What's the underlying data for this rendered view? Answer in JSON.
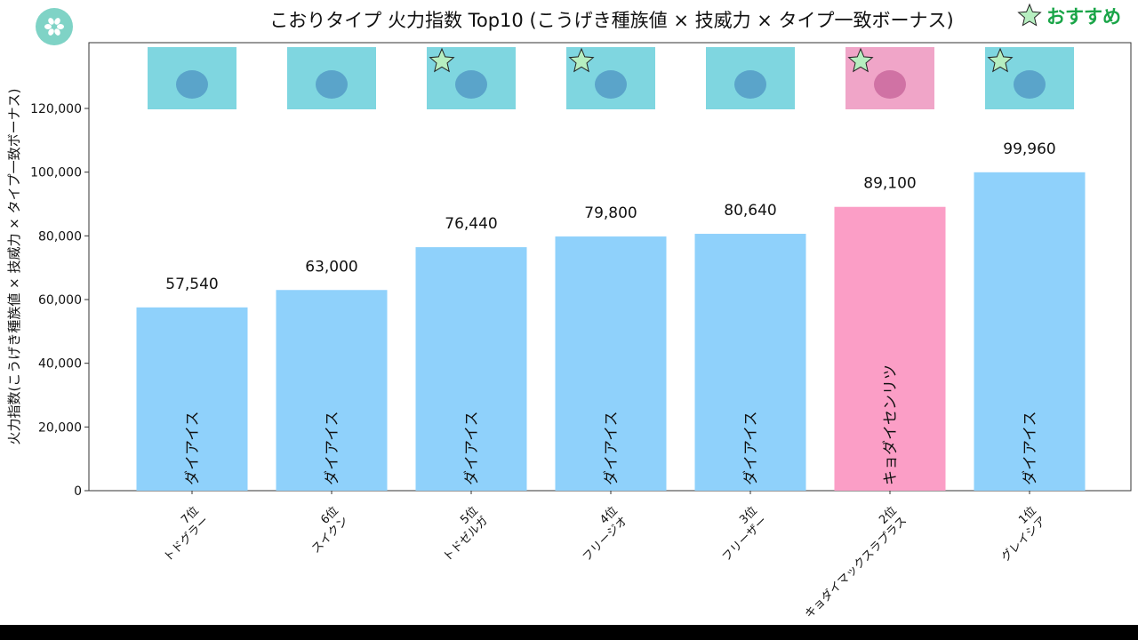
{
  "logo": {
    "icon": "snowflake-icon",
    "color": "#7fd3c6"
  },
  "recommend": {
    "label": "おすすめ",
    "icon": "star-icon",
    "star_color": "#b6eec0",
    "text_color": "#1aa548"
  },
  "chart_data": {
    "type": "bar",
    "title": "こおりタイプ 火力指数 Top10 (こうげき種族値 × 技威力 × タイプ一致ボーナス)",
    "ylabel": "火力指数(こうげき種族値 × 技威力 × タイプ一致ボーナス)",
    "xlabel": "",
    "ylim": [
      0,
      140000
    ],
    "yticks": [
      0,
      20000,
      40000,
      60000,
      80000,
      100000,
      120000
    ],
    "ytick_labels": [
      "0",
      "20,000",
      "40,000",
      "60,000",
      "80,000",
      "100,000",
      "120,000"
    ],
    "grid": false,
    "categories": [
      "7位\nトドグラー",
      "6位\nスイクン",
      "5位\nトドゼルガ",
      "4位\nフリージオ",
      "3位\nフリーザー",
      "2位\nキョダイマックスラプラス",
      "1位\nグレイシア"
    ],
    "values": [
      57540,
      63000,
      76440,
      79800,
      80640,
      89100,
      99960
    ],
    "value_labels": [
      "57,540",
      "63,000",
      "76,440",
      "79,800",
      "80,640",
      "89,100",
      "99,960"
    ],
    "moves": [
      "ダイアイス",
      "ダイアイス",
      "ダイアイス",
      "ダイアイス",
      "ダイアイス",
      "キョダイセンリツ",
      "ダイアイス"
    ],
    "recommended": [
      false,
      false,
      true,
      true,
      false,
      true,
      true
    ],
    "colors": [
      "#8fd1fb",
      "#8fd1fb",
      "#8fd1fb",
      "#8fd1fb",
      "#8fd1fb",
      "#fb9ec6",
      "#8fd1fb"
    ],
    "thumb_colors": [
      "#7fd6e0",
      "#7fd6e0",
      "#7fd6e0",
      "#7fd6e0",
      "#7fd6e0",
      "#f0a5c8",
      "#7fd6e0"
    ]
  }
}
